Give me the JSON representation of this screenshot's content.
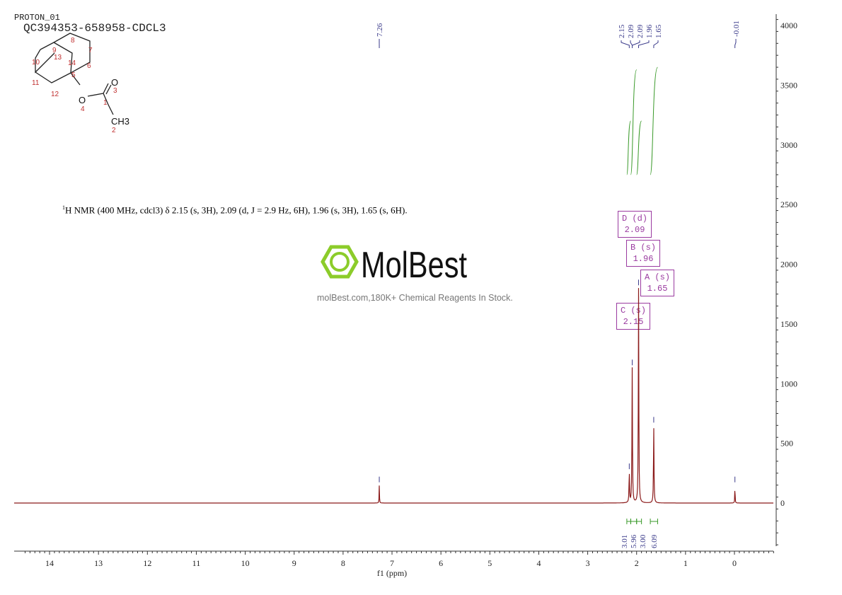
{
  "header": {
    "experiment": "PROTON_01",
    "sample": "QC394353-658958-CDCL3"
  },
  "description": {
    "prefix": "1",
    "text": "H NMR (400 MHz, cdcl3) δ 2.15 (s, 3H), 2.09 (d, J = 2.9 Hz, 6H), 1.96 (s, 3H), 1.65 (s, 6H)."
  },
  "watermark": {
    "brand": "MolBest",
    "tagline": "molBest.com,180K+ Chemical Reagents In Stock."
  },
  "structure": {
    "atom_labels": [
      "1",
      "2",
      "3",
      "4",
      "5",
      "6",
      "7",
      "8",
      "9",
      "10",
      "11",
      "12",
      "13",
      "14"
    ],
    "O": "O",
    "CH3": "CH3"
  },
  "multiplets": [
    {
      "label": "D (d)",
      "shift": "2.09"
    },
    {
      "label": "B (s)",
      "shift": "1.96"
    },
    {
      "label": "A (s)",
      "shift": "1.65"
    },
    {
      "label": "C (s)",
      "shift": "2.15"
    }
  ],
  "chart_data": {
    "type": "line",
    "xlabel": "f1 (ppm)",
    "xlim": [
      14.7,
      -0.8
    ],
    "ylim": [
      -400,
      4100
    ],
    "x_ticks": [
      14,
      13,
      12,
      11,
      10,
      9,
      8,
      7,
      6,
      5,
      4,
      3,
      2,
      1,
      0
    ],
    "y_ticks": [
      4000,
      3500,
      3000,
      2500,
      2000,
      1500,
      1000,
      500,
      0
    ],
    "peaks": [
      {
        "ppm": 7.26,
        "height": 150
      },
      {
        "ppm": 2.15,
        "height": 260
      },
      {
        "ppm": 2.09,
        "height": 1130
      },
      {
        "ppm": 1.96,
        "height": 1800
      },
      {
        "ppm": 1.65,
        "height": 650
      },
      {
        "ppm": -0.01,
        "height": 150
      }
    ],
    "peak_labels": [
      "7.26",
      "2.15",
      "2.09",
      "2.09",
      "1.96",
      "1.65",
      "-0.01"
    ],
    "integrals": [
      {
        "from": 2.2,
        "to": 2.12,
        "value": "3.01"
      },
      {
        "from": 2.12,
        "to": 2.0,
        "value": "5.96"
      },
      {
        "from": 2.0,
        "to": 1.9,
        "value": "3.00"
      },
      {
        "from": 1.72,
        "to": 1.57,
        "value": "6.09"
      }
    ],
    "colors": {
      "spectrum": "#8b1a1a",
      "integral": "#3a9a2a",
      "peak_label": "#3a3a8a",
      "multiplet": "#9a3aa0"
    }
  }
}
